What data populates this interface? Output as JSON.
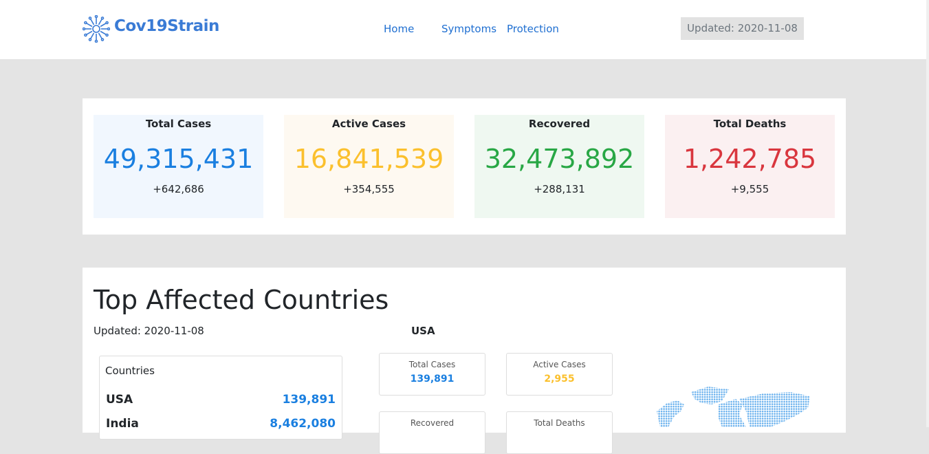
{
  "header": {
    "logo": "Cov19Strain",
    "nav": [
      "Home",
      "Symptoms",
      "Protection"
    ],
    "updated": "Updated: 2020-11-08"
  },
  "summary": [
    {
      "label": "Total Cases",
      "value": "49,315,431",
      "delta": "+642,686"
    },
    {
      "label": "Active Cases",
      "value": "16,841,539",
      "delta": "+354,555"
    },
    {
      "label": "Recovered",
      "value": "32,473,892",
      "delta": "+288,131"
    },
    {
      "label": "Total Deaths",
      "value": "1,242,785",
      "delta": "+9,555"
    }
  ],
  "top": {
    "title": "Top Affected Countries",
    "updated": "Updated: 2020-11-08",
    "list_header": "Countries",
    "countries": [
      {
        "name": "USA",
        "value": "139,891"
      },
      {
        "name": "India",
        "value": "8,462,080"
      }
    ],
    "selected": "USA",
    "cards": [
      {
        "label": "Total Cases",
        "value": "139,891"
      },
      {
        "label": "Active Cases",
        "value": "2,955"
      },
      {
        "label": "Recovered"
      },
      {
        "label": "Total Deaths"
      }
    ]
  }
}
